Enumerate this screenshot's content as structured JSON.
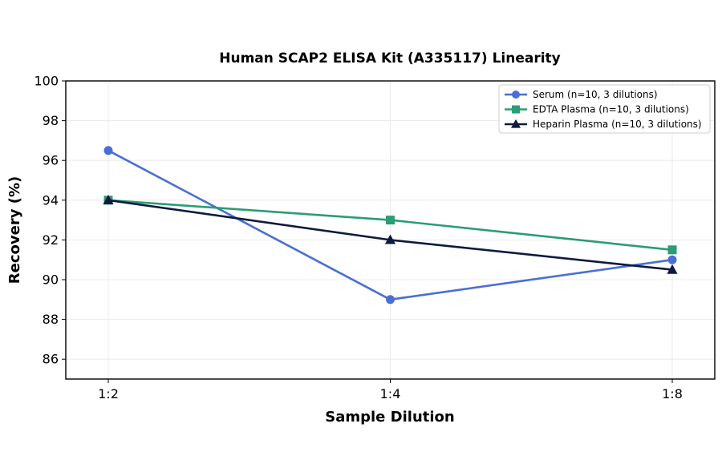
{
  "chart_data": {
    "type": "line",
    "title": "Human SCAP2 ELISA Kit (A335117) Linearity",
    "xlabel": "Sample Dilution",
    "ylabel": "Recovery (%)",
    "categories": [
      "1:2",
      "1:4",
      "1:8"
    ],
    "ylim": [
      85,
      100
    ],
    "yticks": [
      86,
      88,
      90,
      92,
      94,
      96,
      98,
      100
    ],
    "grid": true,
    "legend_position": "top-right",
    "series": [
      {
        "name": "Serum (n=10, 3 dilutions)",
        "values": [
          96.5,
          89.0,
          91.0
        ],
        "color": "#4a6fd4",
        "marker": "circle"
      },
      {
        "name": "EDTA Plasma (n=10, 3 dilutions)",
        "values": [
          94.0,
          93.0,
          91.5
        ],
        "color": "#2a9d74",
        "marker": "square"
      },
      {
        "name": "Heparin Plasma (n=10, 3 dilutions)",
        "values": [
          94.0,
          92.0,
          90.5
        ],
        "color": "#0e1a3f",
        "marker": "triangle"
      }
    ]
  }
}
